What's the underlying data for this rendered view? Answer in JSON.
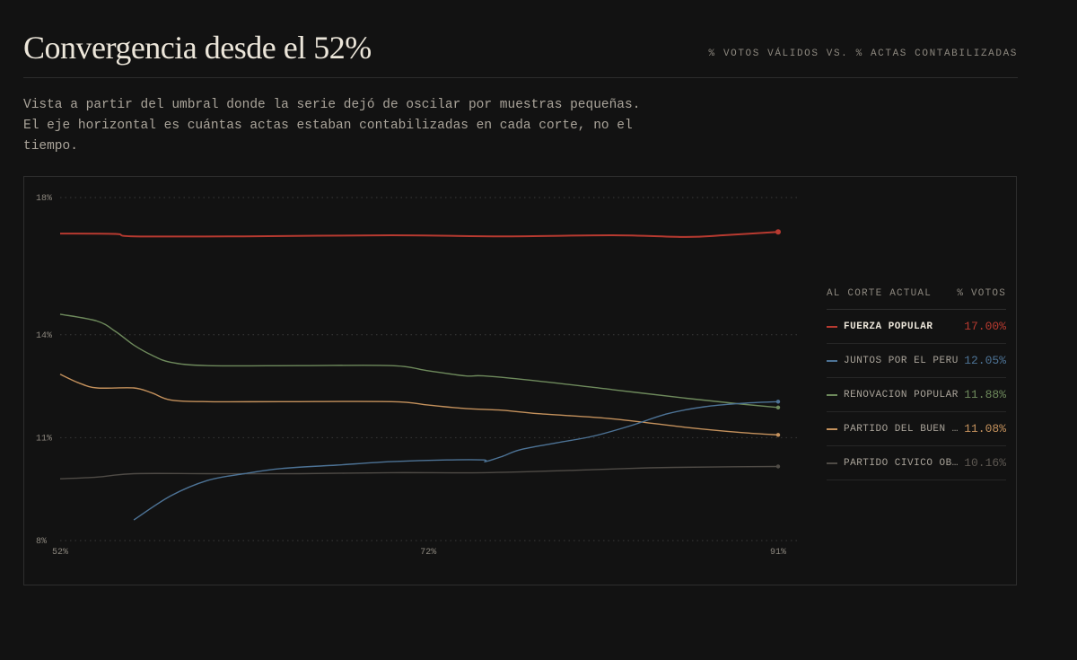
{
  "header": {
    "title": "Convergencia desde el 52%",
    "subtitle": "% VOTOS VÁLIDOS VS. % ACTAS CONTABILIZADAS"
  },
  "description": "Vista a partir del umbral donde la serie dejó de oscilar por muestras pequeñas. El eje horizontal es cuántas actas estaban contabilizadas en cada corte, no el tiempo.",
  "legend": {
    "col_label": "AL CORTE ACTUAL",
    "col_value": "% VOTOS",
    "items": [
      {
        "name": "FUERZA POPULAR",
        "value": "17.00%",
        "color": "#b83a30",
        "active": true
      },
      {
        "name": "JUNTOS POR EL PERÚ",
        "value": "12.05%",
        "color": "#4d7396",
        "active": false
      },
      {
        "name": "RENOVACIÓN POPULAR",
        "value": "11.88%",
        "color": "#6e8a5c",
        "active": false
      },
      {
        "name": "PARTIDO DEL BUEN GOBIERNO",
        "value": "11.08%",
        "color": "#c4915c",
        "active": false
      },
      {
        "name": "PARTIDO CÍVICO OBRAS",
        "value": "10.16%",
        "color": "#4f4b46",
        "active": false
      }
    ]
  },
  "chart_data": {
    "type": "line",
    "xlabel": "",
    "ylabel": "",
    "xlim": [
      52,
      91
    ],
    "ylim": [
      8,
      18.5
    ],
    "x_ticks": [
      52,
      72,
      91
    ],
    "x_tick_labels": [
      "52%",
      "72%",
      "91%"
    ],
    "y_ticks": [
      8,
      11,
      14,
      18
    ],
    "y_tick_labels": [
      "8%",
      "11%",
      "14%",
      "18%"
    ],
    "grid": "horizontal dotted",
    "series": [
      {
        "name": "FUERZA POPULAR",
        "color": "#b83a30",
        "points": [
          [
            52,
            16.95
          ],
          [
            55,
            16.94
          ],
          [
            56,
            16.87
          ],
          [
            62,
            16.87
          ],
          [
            70,
            16.9
          ],
          [
            76,
            16.87
          ],
          [
            82,
            16.9
          ],
          [
            86,
            16.85
          ],
          [
            88,
            16.9
          ],
          [
            91,
            17.0
          ]
        ]
      },
      {
        "name": "JUNTOS POR EL PERÚ",
        "color": "#4d7396",
        "points": [
          [
            56,
            8.6
          ],
          [
            58,
            9.3
          ],
          [
            60,
            9.75
          ],
          [
            62,
            9.95
          ],
          [
            64,
            10.1
          ],
          [
            67,
            10.2
          ],
          [
            70,
            10.3
          ],
          [
            73,
            10.35
          ],
          [
            75,
            10.35
          ],
          [
            75.1,
            10.3
          ],
          [
            76,
            10.45
          ],
          [
            77,
            10.65
          ],
          [
            79,
            10.85
          ],
          [
            81,
            11.05
          ],
          [
            83,
            11.35
          ],
          [
            85,
            11.7
          ],
          [
            87,
            11.9
          ],
          [
            89,
            12.0
          ],
          [
            91,
            12.05
          ]
        ]
      },
      {
        "name": "RENOVACIÓN POPULAR",
        "color": "#6e8a5c",
        "points": [
          [
            52,
            14.6
          ],
          [
            54,
            14.4
          ],
          [
            55,
            14.1
          ],
          [
            56,
            13.7
          ],
          [
            57,
            13.4
          ],
          [
            58,
            13.2
          ],
          [
            60,
            13.1
          ],
          [
            65,
            13.1
          ],
          [
            70,
            13.1
          ],
          [
            72,
            12.95
          ],
          [
            74,
            12.8
          ],
          [
            75,
            12.8
          ],
          [
            78,
            12.65
          ],
          [
            82,
            12.4
          ],
          [
            86,
            12.15
          ],
          [
            89,
            11.98
          ],
          [
            91,
            11.88
          ]
        ]
      },
      {
        "name": "PARTIDO DEL BUEN GOBIERNO",
        "color": "#c4915c",
        "points": [
          [
            52,
            12.85
          ],
          [
            53,
            12.6
          ],
          [
            54,
            12.45
          ],
          [
            56,
            12.45
          ],
          [
            57,
            12.3
          ],
          [
            58,
            12.1
          ],
          [
            60,
            12.05
          ],
          [
            64,
            12.05
          ],
          [
            70,
            12.05
          ],
          [
            72,
            11.95
          ],
          [
            74,
            11.85
          ],
          [
            76,
            11.8
          ],
          [
            78,
            11.7
          ],
          [
            82,
            11.55
          ],
          [
            86,
            11.3
          ],
          [
            89,
            11.15
          ],
          [
            91,
            11.08
          ]
        ]
      },
      {
        "name": "PARTIDO CÍVICO OBRAS",
        "color": "#4f4b46",
        "points": [
          [
            52,
            9.8
          ],
          [
            54,
            9.85
          ],
          [
            56,
            9.95
          ],
          [
            60,
            9.95
          ],
          [
            65,
            9.95
          ],
          [
            70,
            9.98
          ],
          [
            75,
            9.98
          ],
          [
            80,
            10.05
          ],
          [
            84,
            10.12
          ],
          [
            88,
            10.15
          ],
          [
            91,
            10.16
          ]
        ]
      }
    ]
  }
}
